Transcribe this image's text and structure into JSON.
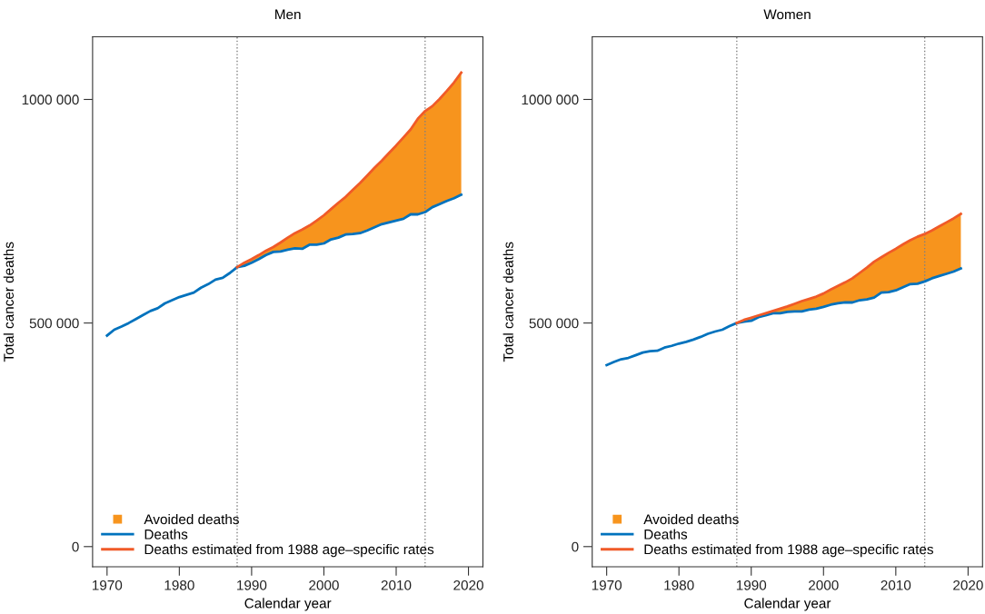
{
  "chart_data": [
    {
      "type": "line",
      "title": "Men",
      "xlabel": "Calendar year",
      "ylabel": "Total cancer deaths",
      "xlim": [
        1968,
        2022
      ],
      "ylim": [
        -45000,
        1140000
      ],
      "xticks": [
        1970,
        1980,
        1990,
        2000,
        2010,
        2020
      ],
      "yticks": [
        {
          "value": 0,
          "label": "0"
        },
        {
          "value": 500000,
          "label": "500 000"
        },
        {
          "value": 1000000,
          "label": "1000 000"
        }
      ],
      "grid": false,
      "legend": "bottom left",
      "annotations": [
        "Avoided deaths"
      ],
      "ref_lines": [
        {
          "axis": "x",
          "value": 1988,
          "color": "#808080",
          "line_style": "dotted"
        },
        {
          "axis": "x",
          "value": 2014,
          "color": "#808080",
          "line_style": "dotted"
        }
      ],
      "series": [
        {
          "name": "Deaths",
          "type": "line",
          "color": "#0072bd",
          "x": [
            1970,
            1971,
            1972,
            1973,
            1974,
            1975,
            1976,
            1977,
            1978,
            1979,
            1980,
            1981,
            1982,
            1983,
            1984,
            1985,
            1986,
            1987,
            1988,
            1989,
            1990,
            1991,
            1992,
            1993,
            1994,
            1995,
            1996,
            1997,
            1998,
            1999,
            2000,
            2001,
            2002,
            2003,
            2004,
            2005,
            2006,
            2007,
            2008,
            2009,
            2010,
            2011,
            2012,
            2013,
            2014,
            2015,
            2016,
            2017,
            2018,
            2019
          ],
          "values": [
            472000,
            485000,
            492000,
            500000,
            509000,
            518000,
            527000,
            533000,
            544000,
            551000,
            558000,
            563000,
            568000,
            579000,
            587000,
            597000,
            601000,
            612000,
            625000,
            628000,
            635000,
            643000,
            652000,
            659000,
            660000,
            664000,
            667000,
            666000,
            675000,
            675000,
            678000,
            687000,
            691000,
            698000,
            699000,
            701000,
            707000,
            714000,
            721000,
            725000,
            729000,
            733000,
            743000,
            743000,
            748000,
            759000,
            766000,
            773000,
            779000,
            787000
          ]
        },
        {
          "name": "Deaths estimated from 1988 age–specific rates",
          "type": "line",
          "color": "#f05a28",
          "x": [
            1988,
            1989,
            1990,
            1991,
            1992,
            1993,
            1994,
            1995,
            1996,
            1997,
            1998,
            1999,
            2000,
            2001,
            2002,
            2003,
            2004,
            2005,
            2006,
            2007,
            2008,
            2009,
            2010,
            2011,
            2012,
            2013,
            2014,
            2015,
            2016,
            2017,
            2018,
            2019
          ],
          "values": [
            625000,
            635000,
            643000,
            652000,
            662000,
            670000,
            680000,
            691000,
            701000,
            709000,
            718000,
            729000,
            741000,
            755000,
            769000,
            782000,
            798000,
            813000,
            830000,
            847000,
            863000,
            880000,
            897000,
            915000,
            933000,
            957000,
            974000,
            985000,
            1001000,
            1019000,
            1038000,
            1060000
          ],
          "lower": [
            625000,
            628000,
            635000,
            643000,
            652000,
            659000,
            660000,
            664000,
            667000,
            666000,
            675000,
            675000,
            678000,
            687000,
            691000,
            698000,
            699000,
            701000,
            707000,
            714000,
            721000,
            725000,
            729000,
            733000,
            743000,
            743000,
            748000,
            759000,
            766000,
            773000,
            779000,
            787000
          ],
          "upper": [
            625000,
            635000,
            643000,
            652000,
            662000,
            670000,
            680000,
            691000,
            701000,
            709000,
            718000,
            729000,
            741000,
            755000,
            769000,
            782000,
            798000,
            813000,
            830000,
            847000,
            863000,
            880000,
            897000,
            915000,
            933000,
            957000,
            974000,
            985000,
            1001000,
            1019000,
            1038000,
            1060000
          ]
        }
      ]
    },
    {
      "type": "line",
      "title": "Women",
      "xlabel": "Calendar year",
      "ylabel": "Total cancer deaths",
      "xlim": [
        1968,
        2022
      ],
      "ylim": [
        -45000,
        1140000
      ],
      "xticks": [
        1970,
        1980,
        1990,
        2000,
        2010,
        2020
      ],
      "yticks": [
        {
          "value": 0,
          "label": "0"
        },
        {
          "value": 500000,
          "label": "500 000"
        },
        {
          "value": 1000000,
          "label": "1000 000"
        }
      ],
      "grid": false,
      "legend": "bottom left",
      "annotations": [
        "Avoided deaths"
      ],
      "ref_lines": [
        {
          "axis": "x",
          "value": 1988,
          "color": "#808080",
          "line_style": "dotted"
        },
        {
          "axis": "x",
          "value": 2014,
          "color": "#808080",
          "line_style": "dotted"
        }
      ],
      "series": [
        {
          "name": "Deaths",
          "type": "line",
          "color": "#0072bd",
          "x": [
            1970,
            1971,
            1972,
            1973,
            1974,
            1975,
            1976,
            1977,
            1978,
            1979,
            1980,
            1981,
            1982,
            1983,
            1984,
            1985,
            1986,
            1987,
            1988,
            1989,
            1990,
            1991,
            1992,
            1993,
            1994,
            1995,
            1996,
            1997,
            1998,
            1999,
            2000,
            2001,
            2002,
            2003,
            2004,
            2005,
            2006,
            2007,
            2008,
            2009,
            2010,
            2011,
            2012,
            2013,
            2014,
            2015,
            2016,
            2017,
            2018,
            2019
          ],
          "values": [
            406000,
            413000,
            419000,
            422000,
            428000,
            434000,
            437000,
            438000,
            445000,
            449000,
            454000,
            458000,
            463000,
            469000,
            476000,
            481000,
            485000,
            493000,
            500000,
            503000,
            505000,
            513000,
            517000,
            522000,
            522000,
            525000,
            526000,
            526000,
            530000,
            532000,
            536000,
            541000,
            544000,
            546000,
            546000,
            551000,
            553000,
            557000,
            568000,
            569000,
            573000,
            580000,
            587000,
            588000,
            593000,
            600000,
            605000,
            610000,
            615000,
            622000
          ]
        },
        {
          "name": "Deaths estimated from 1988 age–specific rates",
          "type": "line",
          "color": "#f05a28",
          "x": [
            1988,
            1989,
            1990,
            1991,
            1992,
            1993,
            1994,
            1995,
            1996,
            1997,
            1998,
            1999,
            2000,
            2001,
            2002,
            2003,
            2004,
            2005,
            2006,
            2007,
            2008,
            2009,
            2010,
            2011,
            2012,
            2013,
            2014,
            2015,
            2016,
            2017,
            2018,
            2019
          ],
          "values": [
            500000,
            507000,
            512000,
            517000,
            522000,
            527000,
            532000,
            537000,
            543000,
            549000,
            554000,
            559000,
            566000,
            575000,
            583000,
            591000,
            600000,
            612000,
            624000,
            637000,
            647000,
            657000,
            666000,
            676000,
            685000,
            693000,
            699000,
            707000,
            716000,
            725000,
            734000,
            744000
          ],
          "lower": [
            500000,
            503000,
            505000,
            513000,
            517000,
            522000,
            522000,
            525000,
            526000,
            526000,
            530000,
            532000,
            536000,
            541000,
            544000,
            546000,
            546000,
            551000,
            553000,
            557000,
            568000,
            569000,
            573000,
            580000,
            587000,
            588000,
            593000,
            600000,
            605000,
            610000,
            615000,
            622000
          ],
          "upper": [
            500000,
            507000,
            512000,
            517000,
            522000,
            527000,
            532000,
            537000,
            543000,
            549000,
            554000,
            559000,
            566000,
            575000,
            583000,
            591000,
            600000,
            612000,
            624000,
            637000,
            647000,
            657000,
            666000,
            676000,
            685000,
            693000,
            699000,
            707000,
            716000,
            725000,
            734000,
            744000
          ]
        }
      ]
    }
  ]
}
